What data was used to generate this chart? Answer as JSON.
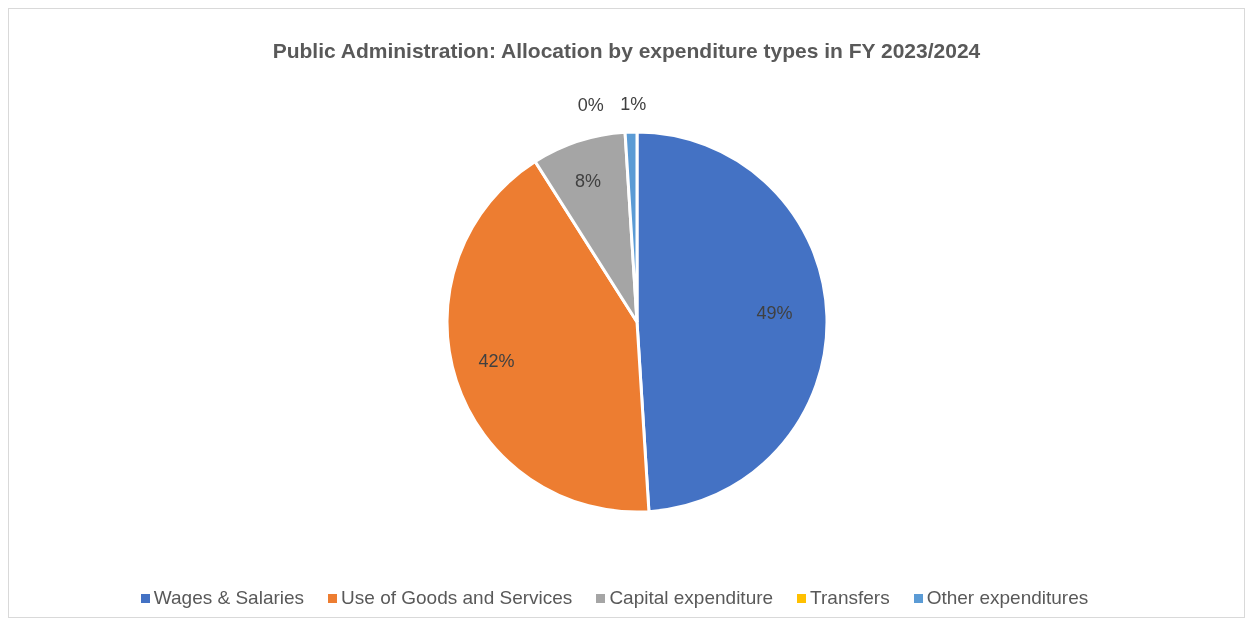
{
  "chart_data": {
    "type": "pie",
    "title": "Public Administration: Allocation by expenditure types in FY 2023/2024",
    "categories": [
      "Wages & Salaries",
      "Use of Goods and Services",
      "Capital expenditure",
      "Transfers",
      "Other expenditures"
    ],
    "values": [
      49,
      42,
      8,
      0,
      1
    ],
    "colors": [
      "#4472c4",
      "#ed7d31",
      "#a5a5a5",
      "#ffc000",
      "#5b9bd5"
    ],
    "value_labels": [
      "49%",
      "42%",
      "8%",
      "0%",
      "1%"
    ],
    "legend": "bottom"
  }
}
